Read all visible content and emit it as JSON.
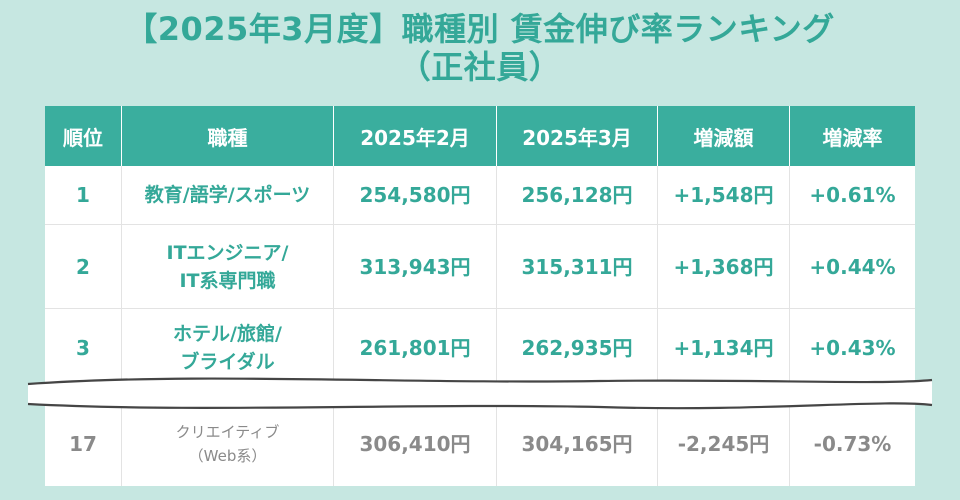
{
  "title": {
    "line1": "【2025年3月度】職種別 賃金伸び率ランキング",
    "line2": "（正社員）"
  },
  "table": {
    "headers": [
      "順位",
      "職種",
      "2025年2月",
      "2025年3月",
      "増減額",
      "増減率"
    ],
    "rows": [
      {
        "rank": "1",
        "job_line1": "教育/語学/スポーツ",
        "job_line2": "",
        "feb": "254,580円",
        "mar": "256,128円",
        "diff": "+1,548円",
        "rate": "+0.61%"
      },
      {
        "rank": "2",
        "job_line1": "ITエンジニア/",
        "job_line2": "IT系専門職",
        "feb": "313,943円",
        "mar": "315,311円",
        "diff": "+1,368円",
        "rate": "+0.44%"
      },
      {
        "rank": "3",
        "job_line1": "ホテル/旅館/",
        "job_line2": "ブライダル",
        "feb": "261,801円",
        "mar": "262,935円",
        "diff": "+1,134円",
        "rate": "+0.43%"
      },
      {
        "rank": "17",
        "job_line1": "クリエイティブ",
        "job_line2": "（Web系）",
        "feb": "306,410円",
        "mar": "304,165円",
        "diff": "-2,245円",
        "rate": "-0.73%"
      }
    ]
  },
  "colors": {
    "accent": "#3aae9e",
    "text_accent": "#34a898",
    "text_muted": "#8a8a8a",
    "background": "#c6e7e1"
  }
}
